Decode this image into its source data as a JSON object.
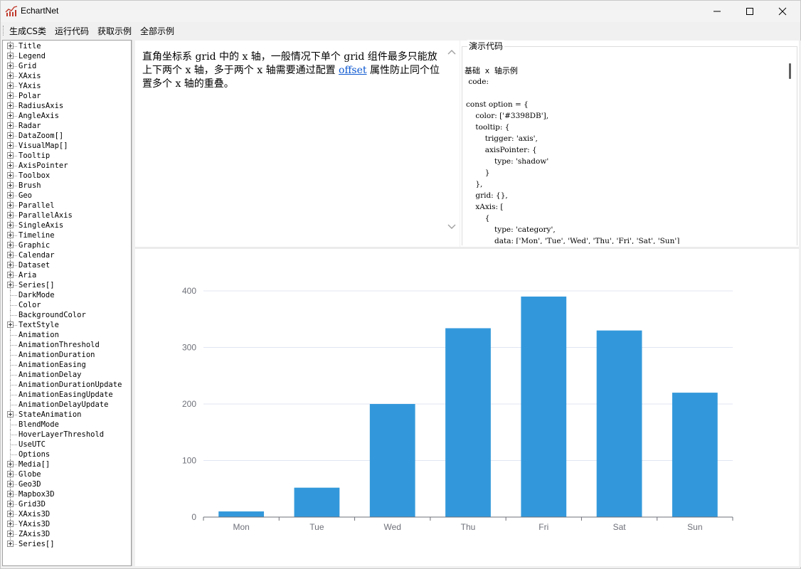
{
  "window": {
    "title": "EchartNet",
    "icon": "chart-line-icon",
    "controls": [
      "minimize-icon",
      "maximize-icon",
      "close-icon"
    ]
  },
  "menu": {
    "items": [
      "生成CS类",
      "运行代码",
      "获取示例",
      "全部示例"
    ]
  },
  "tree": {
    "items": [
      {
        "label": "Title",
        "expandable": true
      },
      {
        "label": "Legend",
        "expandable": true
      },
      {
        "label": "Grid",
        "expandable": true
      },
      {
        "label": "XAxis",
        "expandable": true
      },
      {
        "label": "YAxis",
        "expandable": true
      },
      {
        "label": "Polar",
        "expandable": true
      },
      {
        "label": "RadiusAxis",
        "expandable": true
      },
      {
        "label": "AngleAxis",
        "expandable": true
      },
      {
        "label": "Radar",
        "expandable": true
      },
      {
        "label": "DataZoom[]",
        "expandable": true
      },
      {
        "label": "VisualMap[]",
        "expandable": true
      },
      {
        "label": "Tooltip",
        "expandable": true
      },
      {
        "label": "AxisPointer",
        "expandable": true
      },
      {
        "label": "Toolbox",
        "expandable": true
      },
      {
        "label": "Brush",
        "expandable": true
      },
      {
        "label": "Geo",
        "expandable": true
      },
      {
        "label": "Parallel",
        "expandable": true
      },
      {
        "label": "ParallelAxis",
        "expandable": true
      },
      {
        "label": "SingleAxis",
        "expandable": true
      },
      {
        "label": "Timeline",
        "expandable": true
      },
      {
        "label": "Graphic",
        "expandable": true
      },
      {
        "label": "Calendar",
        "expandable": true
      },
      {
        "label": "Dataset",
        "expandable": true
      },
      {
        "label": "Aria",
        "expandable": true
      },
      {
        "label": "Series[]",
        "expandable": true
      },
      {
        "label": "DarkMode",
        "expandable": false
      },
      {
        "label": "Color",
        "expandable": false
      },
      {
        "label": "BackgroundColor",
        "expandable": false
      },
      {
        "label": "TextStyle",
        "expandable": true
      },
      {
        "label": "Animation",
        "expandable": false
      },
      {
        "label": "AnimationThreshold",
        "expandable": false
      },
      {
        "label": "AnimationDuration",
        "expandable": false
      },
      {
        "label": "AnimationEasing",
        "expandable": false
      },
      {
        "label": "AnimationDelay",
        "expandable": false
      },
      {
        "label": "AnimationDurationUpdate",
        "expandable": false
      },
      {
        "label": "AnimationEasingUpdate",
        "expandable": false
      },
      {
        "label": "AnimationDelayUpdate",
        "expandable": false
      },
      {
        "label": "StateAnimation",
        "expandable": true
      },
      {
        "label": "BlendMode",
        "expandable": false
      },
      {
        "label": "HoverLayerThreshold",
        "expandable": false
      },
      {
        "label": "UseUTC",
        "expandable": false
      },
      {
        "label": "Options",
        "expandable": false
      },
      {
        "label": "Media[]",
        "expandable": true
      },
      {
        "label": "Globe",
        "expandable": true
      },
      {
        "label": "Geo3D",
        "expandable": true
      },
      {
        "label": "Mapbox3D",
        "expandable": true
      },
      {
        "label": "Grid3D",
        "expandable": true
      },
      {
        "label": "XAxis3D",
        "expandable": true
      },
      {
        "label": "YAxis3D",
        "expandable": true
      },
      {
        "label": "ZAxis3D",
        "expandable": true
      },
      {
        "label": "Series[]",
        "expandable": true
      }
    ]
  },
  "description": {
    "part1": "直角坐标系 grid 中的 x 轴，一般情况下单个 grid 组件最多只能放上下两个 x 轴，多于两个 x 轴需要通过配置 ",
    "link": "offset",
    "part2": " 属性防止同个位置多个 x 轴的重叠。"
  },
  "code": {
    "legend": "演示代码",
    "title": "基础 x 轴示例",
    "label": " code:",
    "body": "const option = {\n    color: ['#3398DB'],\n    tooltip: {\n        trigger: 'axis',\n        axisPointer: {\n            type: 'shadow'\n        }\n    },\n    grid: {},\n    xAxis: [\n        {\n            type: 'category',\n            data: ['Mon', 'Tue', 'Wed', 'Thu', 'Fri', 'Sat', 'Sun']"
  },
  "chart_data": {
    "type": "bar",
    "categories": [
      "Mon",
      "Tue",
      "Wed",
      "Thu",
      "Fri",
      "Sat",
      "Sun"
    ],
    "values": [
      10,
      52,
      200,
      334,
      390,
      330,
      220
    ],
    "ylim": [
      0,
      400
    ],
    "yticks": [
      0,
      100,
      200,
      300,
      400
    ],
    "color": "#3398DB",
    "grid": true,
    "title": "",
    "xlabel": "",
    "ylabel": ""
  }
}
